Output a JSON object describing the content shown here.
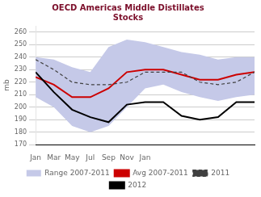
{
  "chart_data": {
    "type": "line",
    "title": "OECD Americas Middle Distillates\nStocks",
    "title_color": "#7b0e2a",
    "ylabel": "mb",
    "x": [
      0,
      1,
      2,
      3,
      4,
      5,
      6,
      7,
      8,
      9,
      10,
      11,
      12
    ],
    "xlim": [
      0,
      12
    ],
    "xticks": [
      {
        "value": 0,
        "label": "Jan"
      },
      {
        "value": 1,
        "label": "Mar"
      },
      {
        "value": 2,
        "label": "May"
      },
      {
        "value": 3,
        "label": "Jul"
      },
      {
        "value": 4,
        "label": "Sep"
      },
      {
        "value": 5,
        "label": "Nov"
      },
      {
        "value": 6,
        "label": "Jan"
      }
    ],
    "ylim": [
      170,
      265
    ],
    "yticks": [
      170,
      180,
      190,
      200,
      210,
      220,
      230,
      240,
      250,
      260
    ],
    "grid": "y",
    "legend": "bottom",
    "series": [
      {
        "name": "Range 2007-2011",
        "type": "range",
        "color": "#c5c9e8",
        "lower": [
          208,
          200,
          185,
          180,
          185,
          200,
          215,
          218,
          212,
          208,
          205,
          208,
          210
        ],
        "upper": [
          240,
          238,
          232,
          228,
          248,
          254,
          252,
          248,
          244,
          242,
          238,
          240,
          240
        ]
      },
      {
        "name": "Avg 2007-2011",
        "type": "line",
        "color": "#cc0000",
        "line_style": "solid",
        "values": [
          224,
          218,
          208,
          208,
          215,
          228,
          230,
          230,
          226,
          222,
          222,
          226,
          228
        ]
      },
      {
        "name": "2011",
        "type": "line",
        "color": "#404040",
        "line_style": "dashed",
        "values": [
          238,
          230,
          220,
          218,
          218,
          220,
          228,
          228,
          228,
          220,
          218,
          220,
          228
        ]
      },
      {
        "name": "2012",
        "type": "line",
        "color": "#000000",
        "line_style": "solid",
        "values": [
          228,
          212,
          198,
          192,
          188,
          202,
          204,
          204,
          193,
          190,
          192,
          204,
          204
        ]
      }
    ]
  }
}
